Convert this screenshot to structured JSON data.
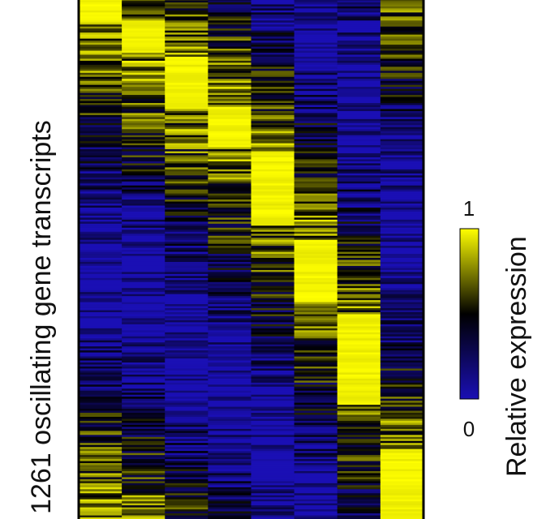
{
  "chart_data": {
    "type": "heatmap",
    "ylabel": "1261 oscillating gene transcripts",
    "colorbar": {
      "label": "Relative expression",
      "min": 0,
      "max": 1,
      "min_label": "0",
      "max_label": "1",
      "colors": [
        "#1a0fb4",
        "#000000",
        "#ffff00"
      ]
    },
    "columns": 8,
    "rows": 1261,
    "peak_blocks": [
      {
        "column": 1,
        "row_start": 0,
        "row_end": 60
      },
      {
        "column": 2,
        "row_start": 60,
        "row_end": 130
      },
      {
        "column": 3,
        "row_start": 140,
        "row_end": 260
      },
      {
        "column": 4,
        "row_start": 260,
        "row_end": 360
      },
      {
        "column": 5,
        "row_start": 370,
        "row_end": 550
      },
      {
        "column": 6,
        "row_start": 580,
        "row_end": 730
      },
      {
        "column": 7,
        "row_start": 760,
        "row_end": 980
      },
      {
        "column": 8,
        "row_start": 1090,
        "row_end": 1261
      }
    ]
  }
}
